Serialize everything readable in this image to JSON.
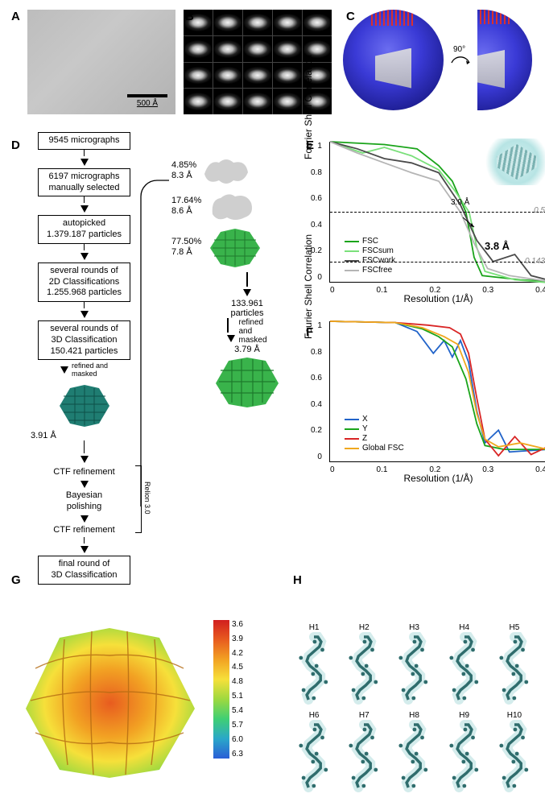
{
  "panels": {
    "A": "A",
    "B": "B",
    "C": "C",
    "D": "D",
    "E": "E",
    "F": "F",
    "G": "G",
    "H": "H"
  },
  "A": {
    "scalebar": "500 Å",
    "bg": "#bdbdbd"
  },
  "B": {
    "rows": 4,
    "cols": 5
  },
  "C": {
    "rotation_label": "90°",
    "sphere_color": "#2e2ed0",
    "pole_color": "#d93030",
    "struct_color": "#d4d4d4"
  },
  "D": {
    "boxes": [
      "9545 micrographs",
      "6197 micrographs\nmanually selected",
      "autopicked\n1.379.187 particles",
      "several rounds of\n2D Classifications\n1.255.968 particles",
      "several rounds of\n3D Classification\n150.421 particles",
      "CTF refinement",
      "Bayesian\npolishing",
      "CTF refinement",
      "final round of\n3D Classification"
    ],
    "refined_masked": "refined and\nmasked",
    "first_res": "3.91 Å",
    "relion": "Relion 3.0",
    "branch_classes": [
      {
        "pct": "4.85%",
        "res": "8.3 Å",
        "color": "#cfcfcf"
      },
      {
        "pct": "17.64%",
        "res": "8.6 Å",
        "color": "#cfcfcf"
      },
      {
        "pct": "77.50%",
        "res": "7.8 Å",
        "color": "#39b34b"
      }
    ],
    "branch_after": "133.961\nparticles",
    "branch_refine": "refined\nand\nmasked",
    "branch_final": "3.79 Å",
    "teal": "#1f7d72",
    "green": "#39b34b"
  },
  "E": {
    "ylabel": "Fourier Shell Correlation",
    "xlabel": "Resolution (1/Å)",
    "xticks": [
      "0",
      "0.1",
      "0.2",
      "0.3",
      "0.4"
    ],
    "yticks": [
      "1",
      "0.8",
      "0.6",
      "0.4",
      "0.2",
      "0"
    ],
    "cut_05": "0.5",
    "cut_0143": "0.143",
    "res_39": "3.9 Å",
    "res_38": "3.8 Å",
    "series": [
      {
        "name": "FSC",
        "color": "#1aa41a"
      },
      {
        "name": "FSCsum",
        "color": "#7ae07a"
      },
      {
        "name": "FSCwork",
        "color": "#4a4a4a"
      },
      {
        "name": "FSCfree",
        "color": "#b5b5b5"
      }
    ],
    "curves": {
      "FSC": [
        [
          0,
          1
        ],
        [
          0.1,
          0.98
        ],
        [
          0.16,
          0.95
        ],
        [
          0.2,
          0.83
        ],
        [
          0.225,
          0.72
        ],
        [
          0.25,
          0.5
        ],
        [
          0.265,
          0.18
        ],
        [
          0.28,
          0.05
        ],
        [
          0.35,
          0.02
        ],
        [
          0.4,
          0.01
        ]
      ],
      "FSCsum": [
        [
          0,
          1
        ],
        [
          0.06,
          0.92
        ],
        [
          0.1,
          0.96
        ],
        [
          0.15,
          0.9
        ],
        [
          0.2,
          0.8
        ],
        [
          0.23,
          0.65
        ],
        [
          0.256,
          0.5
        ],
        [
          0.27,
          0.25
        ],
        [
          0.285,
          0.08
        ],
        [
          0.34,
          0.02
        ],
        [
          0.4,
          0.0
        ]
      ],
      "FSCwork": [
        [
          0,
          1
        ],
        [
          0.05,
          0.95
        ],
        [
          0.1,
          0.88
        ],
        [
          0.15,
          0.85
        ],
        [
          0.2,
          0.78
        ],
        [
          0.24,
          0.55
        ],
        [
          0.27,
          0.3
        ],
        [
          0.3,
          0.15
        ],
        [
          0.34,
          0.2
        ],
        [
          0.37,
          0.05
        ],
        [
          0.4,
          0.02
        ]
      ],
      "FSCfree": [
        [
          0,
          1
        ],
        [
          0.05,
          0.92
        ],
        [
          0.1,
          0.85
        ],
        [
          0.15,
          0.78
        ],
        [
          0.2,
          0.72
        ],
        [
          0.24,
          0.5
        ],
        [
          0.265,
          0.28
        ],
        [
          0.29,
          0.1
        ],
        [
          0.33,
          0.05
        ],
        [
          0.4,
          0.01
        ]
      ]
    },
    "xlim": [
      0,
      0.4
    ],
    "ylim": [
      0,
      1
    ]
  },
  "F": {
    "ylabel": "Fourier Shell Correlation",
    "xlabel": "Resolution (1/Å)",
    "xticks": [
      "0",
      "0.1",
      "0.2",
      "0.3",
      "0.4"
    ],
    "yticks": [
      "1",
      "0.8",
      "0.6",
      "0.4",
      "0.2",
      "0"
    ],
    "series": [
      {
        "name": "X",
        "color": "#2163c9"
      },
      {
        "name": "Y",
        "color": "#1aa41a"
      },
      {
        "name": "Z",
        "color": "#d92525"
      },
      {
        "name": "Global FSC",
        "color": "#f0a81e"
      }
    ],
    "curves": {
      "X": [
        [
          0,
          1
        ],
        [
          0.12,
          0.99
        ],
        [
          0.16,
          0.92
        ],
        [
          0.19,
          0.75
        ],
        [
          0.21,
          0.85
        ],
        [
          0.225,
          0.72
        ],
        [
          0.24,
          0.85
        ],
        [
          0.255,
          0.68
        ],
        [
          0.27,
          0.3
        ],
        [
          0.285,
          0.05
        ],
        [
          0.31,
          0.15
        ],
        [
          0.33,
          -0.02
        ],
        [
          0.4,
          0.0
        ]
      ],
      "Y": [
        [
          0,
          1
        ],
        [
          0.12,
          0.99
        ],
        [
          0.17,
          0.94
        ],
        [
          0.2,
          0.88
        ],
        [
          0.225,
          0.8
        ],
        [
          0.25,
          0.55
        ],
        [
          0.27,
          0.2
        ],
        [
          0.285,
          0.03
        ],
        [
          0.32,
          0.0
        ],
        [
          0.4,
          0.0
        ]
      ],
      "Z": [
        [
          0,
          1
        ],
        [
          0.12,
          0.99
        ],
        [
          0.18,
          0.97
        ],
        [
          0.22,
          0.95
        ],
        [
          0.24,
          0.9
        ],
        [
          0.255,
          0.75
        ],
        [
          0.27,
          0.4
        ],
        [
          0.285,
          0.08
        ],
        [
          0.31,
          -0.05
        ],
        [
          0.34,
          0.1
        ],
        [
          0.37,
          -0.04
        ],
        [
          0.4,
          0.02
        ]
      ],
      "Global": [
        [
          0,
          1
        ],
        [
          0.12,
          0.99
        ],
        [
          0.17,
          0.95
        ],
        [
          0.21,
          0.88
        ],
        [
          0.235,
          0.82
        ],
        [
          0.255,
          0.6
        ],
        [
          0.27,
          0.28
        ],
        [
          0.285,
          0.08
        ],
        [
          0.31,
          0.02
        ],
        [
          0.35,
          0.05
        ],
        [
          0.4,
          0.0
        ]
      ]
    },
    "xlim": [
      0,
      0.4
    ],
    "ylim": [
      -0.1,
      1
    ]
  },
  "G": {
    "ticks": [
      "3.6",
      "3.9",
      "4.2",
      "4.5",
      "4.8",
      "5.1",
      "5.4",
      "5.7",
      "6.0",
      "6.3"
    ],
    "stops": [
      "#d11f1f",
      "#e85c1f",
      "#f2a223",
      "#f6e03a",
      "#9ed93f",
      "#3fcf74",
      "#2aa7c9",
      "#2a5ed6"
    ]
  },
  "H": {
    "labels": [
      "H1",
      "H2",
      "H3",
      "H4",
      "H5",
      "H6",
      "H7",
      "H8",
      "H9",
      "H10"
    ],
    "mesh": "#cfeaea",
    "model": "#2f6d6d"
  }
}
